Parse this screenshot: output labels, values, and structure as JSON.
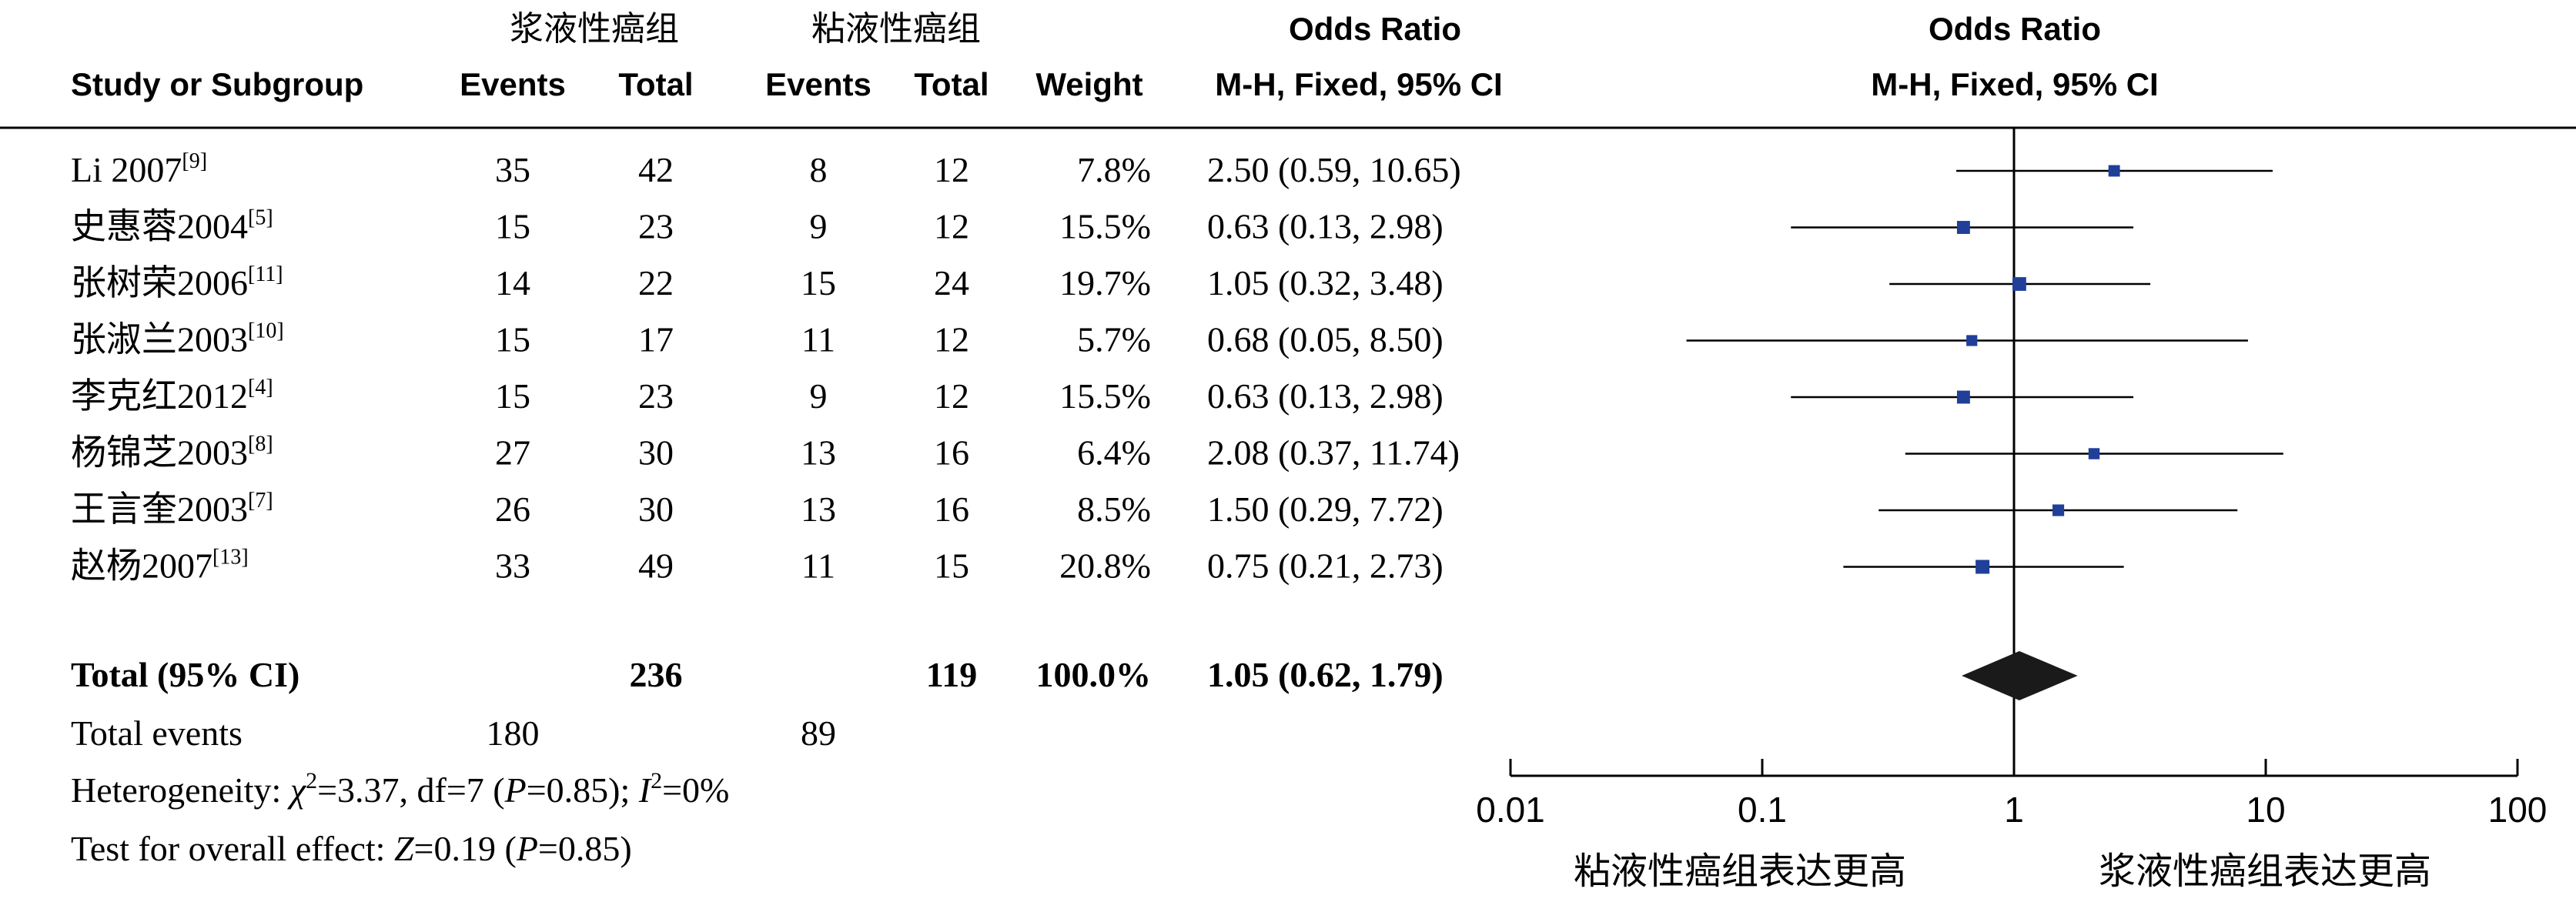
{
  "group_headers": {
    "experimental": "浆液性癌组",
    "control": "粘液性癌组"
  },
  "columns": {
    "study": "Study or Subgroup",
    "events1": "Events",
    "total1": "Total",
    "events2": "Events",
    "total2": "Total",
    "weight": "Weight",
    "or_title": "Odds Ratio",
    "or_method": "M-H, Fixed, 95% CI",
    "plot_title": "Odds Ratio",
    "plot_method": "M-H, Fixed, 95% CI"
  },
  "studies": [
    {
      "name": "Li 2007",
      "ref": "[9]",
      "events1": "35",
      "total1": "42",
      "events2": "8",
      "total2": "12",
      "weight": "7.8%",
      "ci_text": "2.50 (0.59, 10.65)"
    },
    {
      "name": "史惠蓉2004",
      "ref": "[5]",
      "events1": "15",
      "total1": "23",
      "events2": "9",
      "total2": "12",
      "weight": "15.5%",
      "ci_text": "0.63 (0.13, 2.98)"
    },
    {
      "name": "张树荣2006",
      "ref": "[11]",
      "events1": "14",
      "total1": "22",
      "events2": "15",
      "total2": "24",
      "weight": "19.7%",
      "ci_text": "1.05 (0.32, 3.48)"
    },
    {
      "name": "张淑兰2003",
      "ref": "[10]",
      "events1": "15",
      "total1": "17",
      "events2": "11",
      "total2": "12",
      "weight": "5.7%",
      "ci_text": "0.68 (0.05, 8.50)"
    },
    {
      "name": "李克红2012",
      "ref": "[4]",
      "events1": "15",
      "total1": "23",
      "events2": "9",
      "total2": "12",
      "weight": "15.5%",
      "ci_text": "0.63 (0.13, 2.98)"
    },
    {
      "name": "杨锦芝2003",
      "ref": "[8]",
      "events1": "27",
      "total1": "30",
      "events2": "13",
      "total2": "16",
      "weight": "6.4%",
      "ci_text": "2.08 (0.37, 11.74)"
    },
    {
      "name": "王言奎2003",
      "ref": "[7]",
      "events1": "26",
      "total1": "30",
      "events2": "13",
      "total2": "16",
      "weight": "8.5%",
      "ci_text": "1.50 (0.29, 7.72)"
    },
    {
      "name": "赵杨2007",
      "ref": "[13]",
      "events1": "33",
      "total1": "49",
      "events2": "11",
      "total2": "15",
      "weight": "20.8%",
      "ci_text": "0.75 (0.21, 2.73)"
    }
  ],
  "total": {
    "label": "Total (95% CI)",
    "total1": "236",
    "total2": "119",
    "weight": "100.0%",
    "ci_text": "1.05 (0.62, 1.79)"
  },
  "total_events": {
    "label": "Total events",
    "events1": "180",
    "events2": "89"
  },
  "heterogeneity": {
    "prefix": "Heterogeneity: ",
    "chi_symbol": "χ",
    "chi_value": "=3.37, df=7 (",
    "p_symbol": "P",
    "p_value": "=0.85); ",
    "i_symbol": "I",
    "i_value": "=0%"
  },
  "overall_effect": {
    "prefix": "Test for overall effect: ",
    "z_symbol": "Z",
    "z_value": "=0.19 (",
    "p_symbol": "P",
    "p_value": "=0.85)"
  },
  "axis": {
    "tick_labels": [
      "0.01",
      "0.1",
      "1",
      "10",
      "100"
    ],
    "left_label": "粘液性癌组表达更高",
    "right_label": "浆液性癌组表达更高"
  },
  "chart_data": {
    "type": "forest",
    "x_scale": "log",
    "xlim": [
      0.01,
      100
    ],
    "ticks": [
      0.01,
      0.1,
      1,
      10,
      100
    ],
    "reference_line": 1,
    "points": [
      {
        "study": "Li 2007",
        "or": 2.5,
        "lower": 0.59,
        "upper": 10.65,
        "weight": 7.8
      },
      {
        "study": "史惠蓉2004",
        "or": 0.63,
        "lower": 0.13,
        "upper": 2.98,
        "weight": 15.5
      },
      {
        "study": "张树荣2006",
        "or": 1.05,
        "lower": 0.32,
        "upper": 3.48,
        "weight": 19.7
      },
      {
        "study": "张淑兰2003",
        "or": 0.68,
        "lower": 0.05,
        "upper": 8.5,
        "weight": 5.7
      },
      {
        "study": "李克红2012",
        "or": 0.63,
        "lower": 0.13,
        "upper": 2.98,
        "weight": 15.5
      },
      {
        "study": "杨锦芝2003",
        "or": 2.08,
        "lower": 0.37,
        "upper": 11.74,
        "weight": 6.4
      },
      {
        "study": "王言奎2003",
        "or": 1.5,
        "lower": 0.29,
        "upper": 7.72,
        "weight": 8.5
      },
      {
        "study": "赵杨2007",
        "or": 0.75,
        "lower": 0.21,
        "upper": 2.73,
        "weight": 20.8
      }
    ],
    "pooled": {
      "or": 1.05,
      "lower": 0.62,
      "upper": 1.79
    },
    "colors": {
      "marker": "#1f3f99",
      "diamond": "#1a1a1a",
      "line": "#000000"
    }
  }
}
